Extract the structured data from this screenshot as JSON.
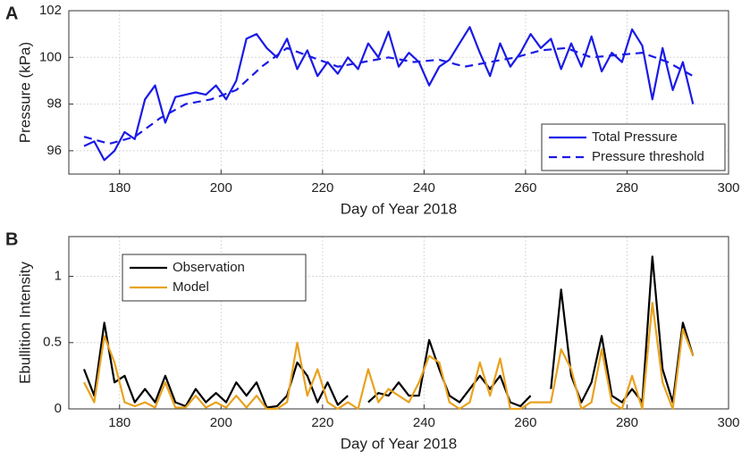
{
  "chart_data": [
    {
      "type": "line",
      "panel_label": "A",
      "xlabel": "Day of Year 2018",
      "ylabel": "Pressure (kPa)",
      "xlim": [
        170,
        300
      ],
      "ylim": [
        95,
        102
      ],
      "xticks": [
        180,
        200,
        220,
        240,
        260,
        280,
        300
      ],
      "yticks": [
        96,
        98,
        100,
        102
      ],
      "grid": true,
      "legend": "lower-right",
      "series": [
        {
          "name": "Total Pressure",
          "color": "#1a1ae6",
          "dashed": false,
          "x": [
            173,
            175,
            177,
            179,
            181,
            183,
            185,
            187,
            189,
            191,
            193,
            195,
            197,
            199,
            201,
            203,
            205,
            207,
            209,
            211,
            213,
            215,
            217,
            219,
            221,
            223,
            225,
            227,
            229,
            231,
            233,
            235,
            237,
            239,
            241,
            243,
            245,
            247,
            249,
            251,
            253,
            255,
            257,
            259,
            261,
            263,
            265,
            267,
            269,
            271,
            273,
            275,
            277,
            279,
            281,
            283,
            285,
            287,
            289,
            291,
            293
          ],
          "values": [
            96.2,
            96.4,
            95.6,
            96.0,
            96.8,
            96.5,
            98.2,
            98.8,
            97.2,
            98.3,
            98.4,
            98.5,
            98.4,
            98.8,
            98.2,
            99.0,
            100.8,
            101.0,
            100.4,
            100.0,
            100.8,
            99.5,
            100.3,
            99.2,
            99.8,
            99.3,
            100.0,
            99.5,
            100.6,
            100.0,
            101.1,
            99.6,
            100.2,
            99.8,
            98.8,
            99.6,
            99.9,
            100.6,
            101.3,
            100.2,
            99.2,
            100.6,
            99.6,
            100.2,
            101.0,
            100.4,
            100.8,
            99.5,
            100.6,
            99.6,
            100.9,
            99.4,
            100.2,
            99.8,
            101.2,
            100.5,
            98.2,
            100.4,
            98.6,
            99.8,
            98.0
          ]
        },
        {
          "name": "Pressure threshold",
          "color": "#1a1ae6",
          "dashed": true,
          "x": [
            173,
            178,
            183,
            188,
            193,
            198,
            203,
            208,
            213,
            218,
            223,
            228,
            233,
            238,
            243,
            248,
            253,
            258,
            263,
            268,
            273,
            278,
            283,
            288,
            293
          ],
          "values": [
            96.6,
            96.3,
            96.6,
            97.4,
            98.0,
            98.2,
            98.6,
            99.6,
            100.4,
            100.0,
            99.6,
            99.8,
            100.0,
            99.8,
            99.9,
            99.6,
            99.8,
            100.0,
            100.3,
            100.4,
            100.0,
            100.1,
            100.2,
            99.8,
            99.2
          ]
        }
      ]
    },
    {
      "type": "line",
      "panel_label": "B",
      "xlabel": "Day of Year 2018",
      "ylabel": "Ebullition Intensity",
      "xlim": [
        170,
        300
      ],
      "ylim": [
        0,
        1.3
      ],
      "xticks": [
        180,
        200,
        220,
        240,
        260,
        280,
        300
      ],
      "yticks": [
        0,
        0.5,
        1
      ],
      "grid": true,
      "legend": "upper-left",
      "series": [
        {
          "name": "Observation",
          "color": "#000000",
          "dashed": false,
          "x": [
            173,
            175,
            177,
            179,
            181,
            183,
            185,
            187,
            189,
            191,
            193,
            195,
            197,
            199,
            201,
            203,
            205,
            207,
            209,
            211,
            213,
            215,
            217,
            219,
            221,
            223,
            225,
            227,
            229,
            231,
            233,
            235,
            237,
            239,
            241,
            243,
            245,
            247,
            249,
            251,
            253,
            255,
            257,
            259,
            261,
            263,
            265,
            267,
            269,
            271,
            273,
            275,
            277,
            279,
            281,
            283,
            285,
            287,
            289,
            291,
            293
          ],
          "values": [
            0.3,
            0.1,
            0.65,
            0.2,
            0.25,
            0.05,
            0.15,
            0.05,
            0.25,
            0.05,
            0.02,
            0.15,
            0.05,
            0.12,
            0.05,
            0.2,
            0.1,
            0.2,
            0.01,
            0.02,
            0.1,
            0.35,
            0.25,
            0.05,
            0.2,
            0.03,
            0.1,
            null,
            0.05,
            0.12,
            0.1,
            0.2,
            0.1,
            0.1,
            0.52,
            0.3,
            0.1,
            0.05,
            0.15,
            0.25,
            0.15,
            0.25,
            0.05,
            0.02,
            0.1,
            null,
            0.15,
            0.9,
            0.25,
            0.05,
            0.2,
            0.55,
            0.1,
            0.05,
            0.15,
            0.05,
            1.15,
            0.3,
            0.05,
            0.65,
            0.4
          ]
        },
        {
          "name": "Model",
          "color": "#e8a21e",
          "dashed": false,
          "x": [
            173,
            175,
            177,
            179,
            181,
            183,
            185,
            187,
            189,
            191,
            193,
            195,
            197,
            199,
            201,
            203,
            205,
            207,
            209,
            211,
            213,
            215,
            217,
            219,
            221,
            223,
            225,
            227,
            229,
            231,
            233,
            235,
            237,
            239,
            241,
            243,
            245,
            247,
            249,
            251,
            253,
            255,
            257,
            259,
            261,
            263,
            265,
            267,
            269,
            271,
            273,
            275,
            277,
            279,
            281,
            283,
            285,
            287,
            289,
            291,
            293
          ],
          "values": [
            0.2,
            0.05,
            0.55,
            0.35,
            0.05,
            0.02,
            0.05,
            0.01,
            0.2,
            0.01,
            0.01,
            0.1,
            0.01,
            0.05,
            0.01,
            0.1,
            0.01,
            0.1,
            0,
            0,
            0.05,
            0.5,
            0.1,
            0.3,
            0.05,
            0,
            0.05,
            0,
            0.3,
            0.05,
            0.15,
            0.1,
            0.05,
            0.2,
            0.4,
            0.35,
            0.05,
            0,
            0.05,
            0.35,
            0.1,
            0.38,
            0,
            0,
            0.05,
            0.05,
            0.05,
            0.45,
            0.3,
            0,
            0.05,
            0.45,
            0.05,
            0,
            0.25,
            0,
            0.8,
            0.2,
            0,
            0.6,
            0.4
          ]
        }
      ]
    }
  ]
}
